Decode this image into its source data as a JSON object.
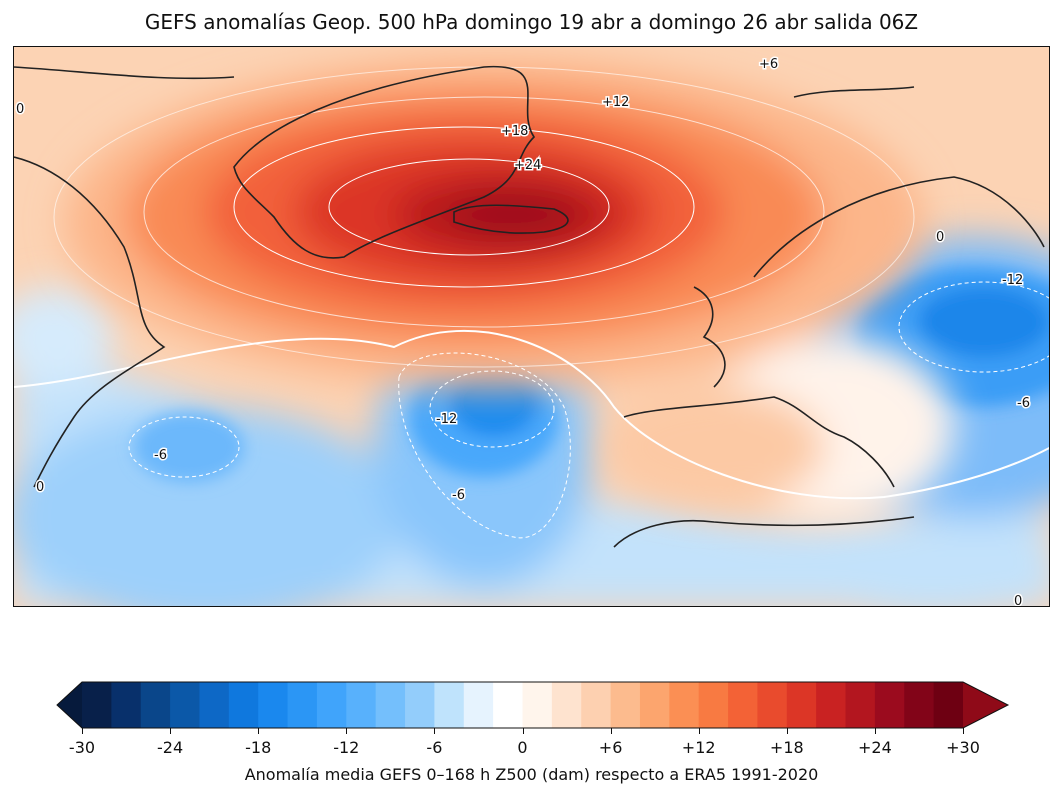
{
  "title": "GEFS anomalías Geop. 500 hPa domingo 19 abr a domingo 26 abr salida 06Z",
  "map": {
    "variable": "Z500 anomaly (dam)",
    "features": [
      {
        "name": "positive-anomaly-greenland-iceland",
        "peak_dam": 30
      },
      {
        "name": "negative-anomaly-mid-atlantic",
        "peak_dam": -16
      },
      {
        "name": "negative-anomaly-eastern-europe",
        "peak_dam": -14
      },
      {
        "name": "negative-anomaly-western-atlantic",
        "peak_dam": -8
      }
    ],
    "contour_labels": [
      {
        "text": "+6"
      },
      {
        "text": "+12"
      },
      {
        "text": "+18"
      },
      {
        "text": "+24"
      },
      {
        "text": "0"
      },
      {
        "text": "0"
      },
      {
        "text": "0"
      },
      {
        "text": "0"
      },
      {
        "text": "-12"
      },
      {
        "text": "-12"
      },
      {
        "text": "-6"
      },
      {
        "text": "-6"
      },
      {
        "text": "-6"
      }
    ]
  },
  "colorbar": {
    "min": -30,
    "max": 30,
    "step": 2,
    "extend": "both",
    "colors": [
      "#08204a",
      "#08306b",
      "#0a468a",
      "#0b58a8",
      "#0d68c6",
      "#0f78de",
      "#1a88ee",
      "#2b96f5",
      "#40a4fb",
      "#58b1fc",
      "#74bffc",
      "#93cdfb",
      "#bfe3fc",
      "#e6f3fe",
      "#ffffff",
      "#fff5ec",
      "#fee3cf",
      "#fdd0b0",
      "#fcbb8e",
      "#fca56e",
      "#fb8f54",
      "#f87a42",
      "#f36236",
      "#e94b2d",
      "#dc3626",
      "#c92222",
      "#b3161f",
      "#9b0b1e",
      "#820418",
      "#6e0012"
    ],
    "under_color": "#061a3c",
    "over_color": "#8f0a18",
    "tick_labels": [
      "-30",
      "-24",
      "-18",
      "-12",
      "-6",
      "0",
      "+6",
      "+12",
      "+18",
      "+24",
      "+30"
    ],
    "label": "Anomalía media GEFS 0–168 h Z500 (dam) respecto a ERA5 1991-2020"
  }
}
